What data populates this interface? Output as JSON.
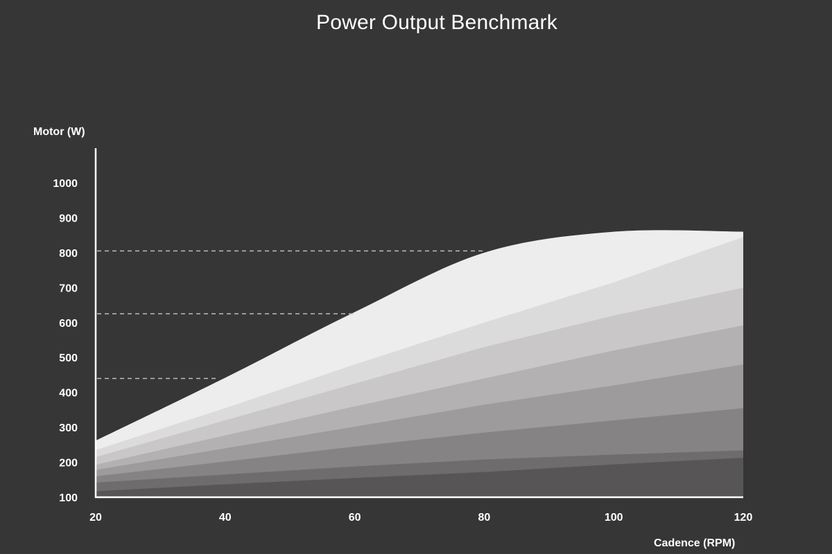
{
  "chart_data": {
    "type": "area",
    "title": "Power Output Benchmark",
    "xlabel": "Cadence (RPM)",
    "ylabel": "Motor (W)",
    "xlim": [
      20,
      120
    ],
    "ylim": [
      100,
      1000
    ],
    "x_ticks": [
      "20",
      "40",
      "60",
      "80",
      "100",
      "120"
    ],
    "y_ticks": [
      "100",
      "200",
      "300",
      "400",
      "500",
      "600",
      "700",
      "800",
      "900",
      "1000"
    ],
    "grid": false,
    "stacked": false,
    "reference_lines": [
      {
        "y": 440,
        "x_end": 39
      },
      {
        "y": 625,
        "x_end": 60
      },
      {
        "y": 805,
        "x_end": 80
      }
    ],
    "series": [
      {
        "x": [
          20,
          40,
          60,
          80,
          100,
          120
        ],
        "values": [
          262,
          442,
          630,
          800,
          860,
          860
        ],
        "color": "#ededed"
      },
      {
        "x": [
          20,
          40,
          60,
          80,
          100,
          120
        ],
        "values": [
          235,
          355,
          480,
          600,
          715,
          845
        ],
        "color": "#dcdbdb"
      },
      {
        "x": [
          20,
          40,
          60,
          80,
          100,
          120
        ],
        "values": [
          215,
          320,
          425,
          530,
          620,
          700
        ],
        "color": "#c9c7c8"
      },
      {
        "x": [
          20,
          40,
          60,
          80,
          100,
          120
        ],
        "values": [
          193,
          277,
          360,
          440,
          520,
          592
        ],
        "color": "#b3b1b2"
      },
      {
        "x": [
          20,
          40,
          60,
          80,
          100,
          120
        ],
        "values": [
          178,
          240,
          302,
          365,
          420,
          480
        ],
        "color": "#9d9b9c"
      },
      {
        "x": [
          20,
          40,
          60,
          80,
          100,
          120
        ],
        "values": [
          160,
          202,
          245,
          285,
          320,
          355
        ],
        "color": "#858384"
      },
      {
        "x": [
          20,
          40,
          60,
          80,
          100,
          120
        ],
        "values": [
          142,
          165,
          188,
          208,
          222,
          234
        ],
        "color": "#6e6c6d"
      },
      {
        "x": [
          20,
          40,
          60,
          80,
          100,
          120
        ],
        "values": [
          117,
          137,
          155,
          172,
          194,
          213
        ],
        "color": "#575556"
      }
    ]
  }
}
